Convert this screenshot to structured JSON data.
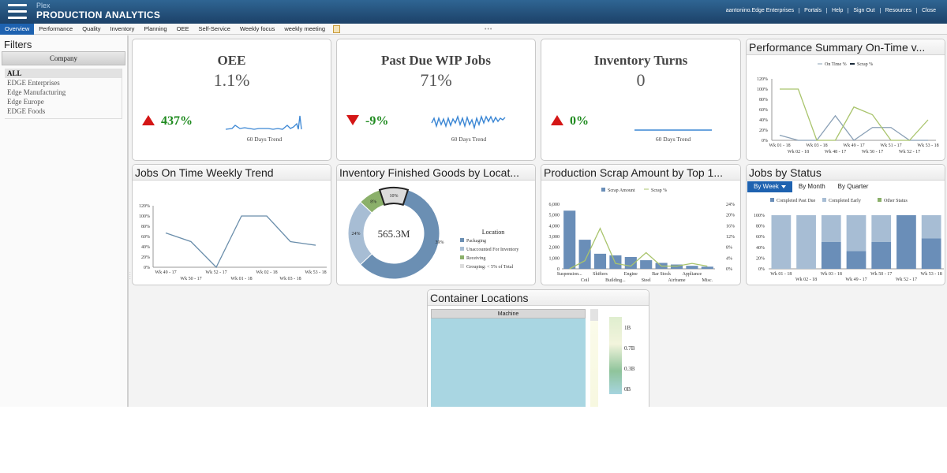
{
  "header": {
    "vendor": "Plex",
    "app_title": "PRODUCTION ANALYTICS",
    "links": [
      "aantonino.Edge Enterprises",
      "Portals",
      "Help",
      "Sign Out",
      "Resources",
      "Close"
    ]
  },
  "tabs": [
    {
      "label": "Overview",
      "active": true
    },
    {
      "label": "Performance"
    },
    {
      "label": "Quality"
    },
    {
      "label": "Inventory"
    },
    {
      "label": "Planning"
    },
    {
      "label": "OEE"
    },
    {
      "label": "Self-Service"
    },
    {
      "label": "Weekly focus"
    },
    {
      "label": "weekly meeting"
    }
  ],
  "filters": {
    "title": "Filters",
    "company_header": "Company",
    "companies": [
      "ALL",
      "EDGE Enterprises",
      "Edge Manufacturing",
      "Edge Europe",
      "EDGE Foods"
    ],
    "selected": "ALL"
  },
  "kpis": [
    {
      "title": "OEE",
      "value": "1.1%",
      "change": "437%",
      "direction": "up",
      "trend_label": "60 Days Trend"
    },
    {
      "title": "Past Due WIP Jobs",
      "value": "71%",
      "change": "-9%",
      "direction": "down",
      "trend_label": "60 Days Trend"
    },
    {
      "title": "Inventory Turns",
      "value": "0",
      "change": "0%",
      "direction": "up",
      "trend_label": "60 Days Trend"
    }
  ],
  "colors": {
    "accent_blue": "#1e62b0",
    "trend_line": "#3a86d4",
    "up_down_arrow": "#d41616",
    "positive_text": "#1e8a1e"
  },
  "chart_data": [
    {
      "id": "performance_summary",
      "title": "Performance Summary On-Time v...",
      "type": "line",
      "legend": [
        "On Time %",
        "Scrap %"
      ],
      "x": [
        "Wk 01 - 18",
        "Wk 02 - 18",
        "Wk 03 - 18",
        "Wk 48 - 17",
        "Wk 49 - 17",
        "Wk 50 - 17",
        "Wk 51 - 17",
        "Wk 52 - 17",
        "Wk 53 - 18"
      ],
      "series": [
        {
          "name": "On Time %",
          "color": "#8aa0b6",
          "values": [
            10,
            0,
            0,
            48,
            0,
            25,
            25,
            0,
            0
          ]
        },
        {
          "name": "Scrap %",
          "color": "#a9c46c",
          "values": [
            100,
            100,
            0,
            0,
            65,
            50,
            0,
            0,
            40
          ]
        }
      ],
      "ylim": [
        0,
        120
      ],
      "yticks": [
        "0%",
        "20%",
        "40%",
        "60%",
        "80%",
        "100%",
        "120%"
      ]
    },
    {
      "id": "jobs_on_time",
      "title": "Jobs On Time Weekly Trend",
      "type": "line",
      "x": [
        "Wk 49 - 17",
        "Wk 50 - 17",
        "Wk 52 - 17",
        "Wk 01 - 18",
        "Wk 02 - 18",
        "Wk 03 - 18",
        "Wk 53 - 18"
      ],
      "series": [
        {
          "color": "#6a8eab",
          "values": [
            67,
            50,
            0,
            100,
            100,
            50,
            43
          ]
        }
      ],
      "ylim": [
        0,
        120
      ],
      "yticks": [
        "0%",
        "20%",
        "40%",
        "60%",
        "80%",
        "100%",
        "120%"
      ]
    },
    {
      "id": "inventory_finished_goods",
      "title": "Inventory Finished Goods by Locat...",
      "type": "pie",
      "center_label": "565.3M",
      "legend_title": "Location",
      "slices": [
        {
          "label": "Packaging",
          "value": 58,
          "display": "",
          "color": "#6b8fb3"
        },
        {
          "label": "Unaccounted For Inventory",
          "value": 24,
          "display": "24%",
          "color": "#a7bdd4"
        },
        {
          "label": "Receiving",
          "value": 8,
          "display": "8%",
          "color": "#8bb06a"
        },
        {
          "label": "Grouping: < 5% of Total",
          "value": 10,
          "display": "10%",
          "color": "#dcdcdc"
        }
      ],
      "extra_labels": [
        "39%"
      ]
    },
    {
      "id": "production_scrap",
      "title": "Production Scrap Amount by Top 1...",
      "type": "bar",
      "legend": [
        "Scrap Amount",
        "Scrap %"
      ],
      "categories": [
        "Suspension...",
        "Coil",
        "Shifters",
        "Building...",
        "Engine",
        "Steel",
        "Bar Stock",
        "Airframe",
        "Appliance",
        "Misc."
      ],
      "series": [
        {
          "name": "Scrap Amount",
          "color": "#6a8eb8",
          "values": [
            5400,
            2700,
            1400,
            1250,
            1100,
            800,
            550,
            400,
            280,
            200
          ]
        },
        {
          "name": "Scrap %",
          "color": "#a9c46c",
          "values": [
            0,
            3,
            15,
            2,
            1,
            6,
            1,
            1,
            2,
            1
          ]
        }
      ],
      "ylim_left": [
        0,
        6000
      ],
      "ylim_right": [
        0,
        24
      ],
      "yticks_left": [
        "0",
        "1,000",
        "2,000",
        "3,000",
        "4,000",
        "5,000",
        "6,000"
      ],
      "yticks_right": [
        "0%",
        "4%",
        "8%",
        "12%",
        "16%",
        "20%",
        "24%"
      ]
    },
    {
      "id": "jobs_by_status",
      "title": "Jobs by Status",
      "type": "bar",
      "subtabs": [
        "By Week",
        "By Month",
        "By Quarter"
      ],
      "legend": [
        "Completed Past Due",
        "Completed Early",
        "Other Status"
      ],
      "categories": [
        "Wk 01 - 18",
        "Wk 02 - 18",
        "Wk 03 - 18",
        "Wk 49 - 17",
        "Wk 50 - 17",
        "Wk 52 - 17",
        "Wk 53 - 18"
      ],
      "series": [
        {
          "name": "Completed Past Due",
          "color": "#6a8eb8",
          "values": [
            0,
            0,
            50,
            33,
            50,
            100,
            57
          ]
        },
        {
          "name": "Completed Early",
          "color": "#a7bdd4",
          "values": [
            100,
            100,
            50,
            67,
            50,
            0,
            43
          ]
        }
      ],
      "ylim": [
        0,
        100
      ],
      "yticks": [
        "0%",
        "20%",
        "40%",
        "60%",
        "80%",
        "100%"
      ]
    }
  ],
  "container_locations": {
    "title": "Container Locations",
    "header": "Machine",
    "scale_labels": [
      "1B",
      "0.7B",
      "0.3B",
      "0B"
    ]
  }
}
